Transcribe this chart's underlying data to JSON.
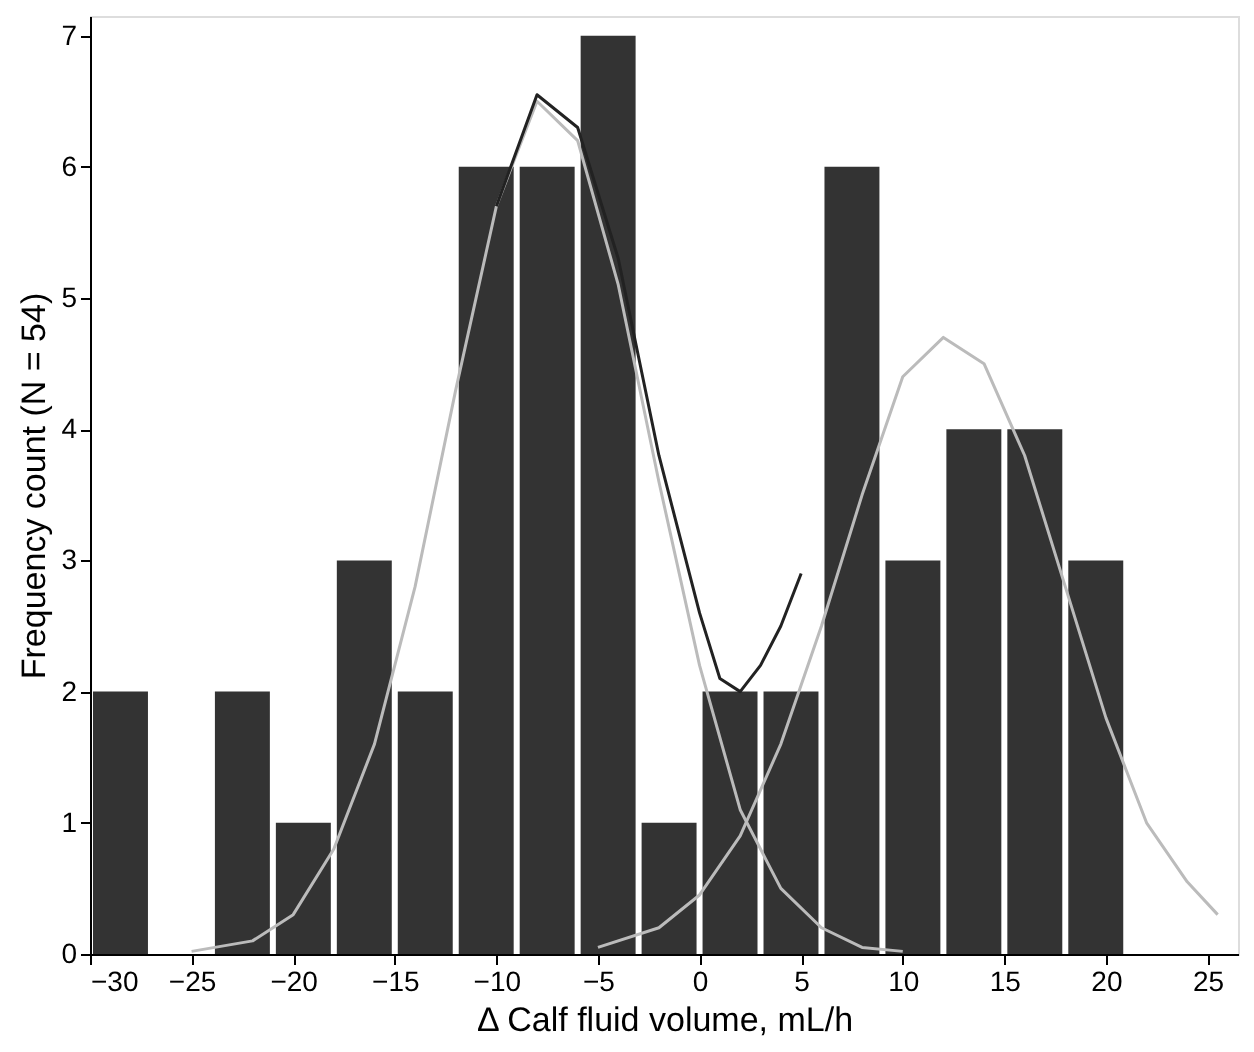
{
  "chart_data": {
    "type": "histogram",
    "xlabel": "Δ Calf fluid volume, mL/h",
    "ylabel": "Frequency count (N = 54)",
    "bins": [
      -30,
      -27,
      -24,
      -21,
      -18,
      -15,
      -12,
      -9,
      -6,
      -3,
      0,
      3,
      6,
      9,
      12,
      15,
      18,
      21
    ],
    "values": [
      2,
      0,
      2,
      1,
      3,
      2,
      6,
      6,
      7,
      1,
      2,
      2,
      6,
      3,
      4,
      4,
      3
    ],
    "color": "#333333",
    "xlim": [
      -30,
      26.5
    ],
    "xticks": [
      -30,
      -25,
      -20,
      -15,
      -10,
      -5,
      0,
      5,
      10,
      15,
      20,
      25
    ],
    "ylim": [
      0,
      7.15
    ],
    "yticks": [
      0,
      1,
      2,
      3,
      4,
      5,
      6,
      7
    ],
    "grid": false,
    "series": [
      {
        "type": "line",
        "color": "#bbbbbb",
        "x": [
          -25,
          -22,
          -20,
          -18,
          -16,
          -14,
          -12,
          -10,
          -8,
          -6,
          -4,
          -2,
          0,
          2,
          4,
          6,
          8,
          10
        ],
        "values": [
          0.02,
          0.1,
          0.3,
          0.8,
          1.6,
          2.8,
          4.3,
          5.7,
          6.5,
          6.2,
          5.1,
          3.6,
          2.2,
          1.1,
          0.5,
          0.2,
          0.05,
          0.02
        ]
      },
      {
        "type": "line",
        "color": "#bbbbbb",
        "x": [
          -5,
          -2,
          0,
          2,
          4,
          6,
          8,
          10,
          12,
          14,
          16,
          18,
          20,
          22,
          24,
          25.5
        ],
        "values": [
          0.05,
          0.2,
          0.45,
          0.9,
          1.6,
          2.5,
          3.5,
          4.4,
          4.7,
          4.5,
          3.8,
          2.8,
          1.8,
          1.0,
          0.55,
          0.3
        ]
      },
      {
        "type": "line",
        "color": "#222222",
        "x": [
          -10,
          -8,
          -6,
          -4,
          -2,
          0,
          1,
          2,
          3,
          4,
          5
        ],
        "values": [
          5.7,
          6.55,
          6.3,
          5.3,
          3.8,
          2.6,
          2.1,
          2.0,
          2.2,
          2.5,
          2.9
        ]
      }
    ]
  }
}
